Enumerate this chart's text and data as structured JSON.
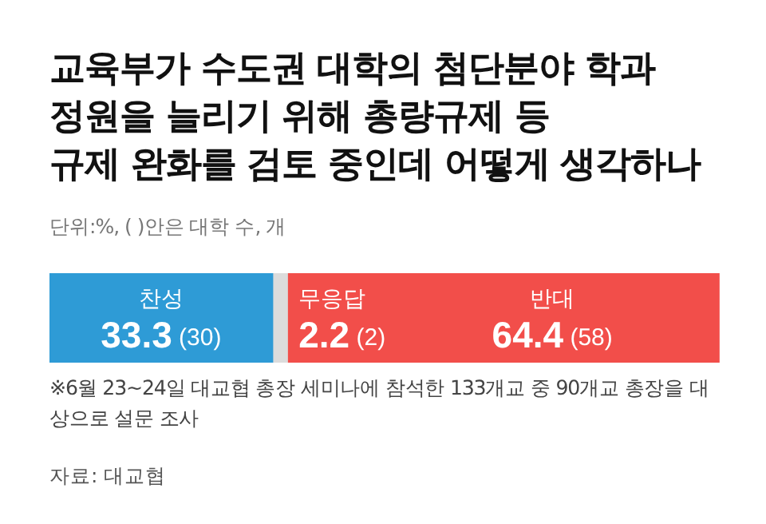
{
  "chart_data": {
    "type": "bar",
    "orientation": "horizontal",
    "stacked": true,
    "title": "교육부가 수도권 대학의 첨단분야 학과\n정원을 늘리기 위해 총량규제 등\n규제 완화를 검토 중인데 어떻게 생각하나",
    "subtitle": "단위:%, ( )안은 대학 수, 개",
    "annotations": [
      "※6월 23~24일 대교협 총장 세미나에 참석한 133개교 중 90개교 총장을 대상으로 설문 조사",
      "자료: 대교협"
    ],
    "categories": [
      null
    ],
    "xlim": [
      0,
      100
    ],
    "tick_labels": false,
    "series": [
      {
        "name": "찬성",
        "color": "#2e9bd6",
        "values": [
          33.3
        ],
        "value_labels": [
          "33.3 (30)"
        ]
      },
      {
        "name": "무응답",
        "color": "#dcdcdc",
        "values": [
          2.2
        ],
        "value_labels": [
          "2.2 (2)"
        ]
      },
      {
        "name": "반대",
        "color": "#f24e4a",
        "values": [
          64.4
        ],
        "value_labels": [
          "64.4 (58)"
        ]
      }
    ]
  }
}
